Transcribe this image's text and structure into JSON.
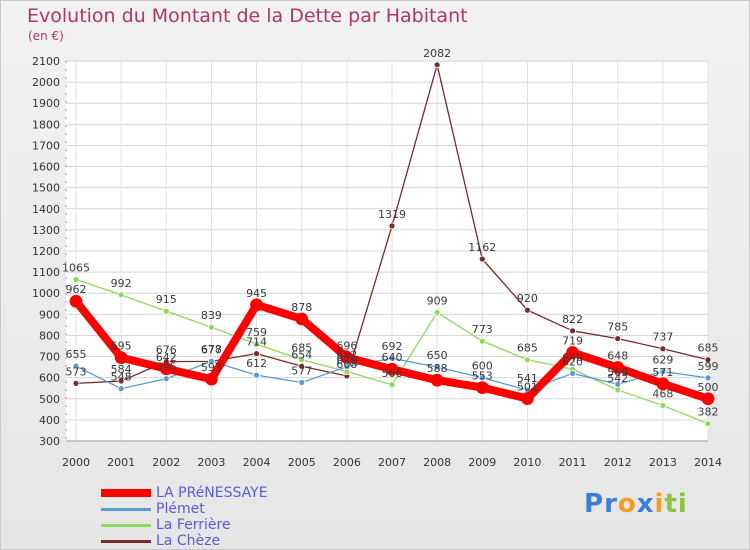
{
  "chart_data": {
    "type": "line",
    "title": "Evolution du Montant de la Dette par Habitant",
    "subtitle": "(en €)",
    "xlabel": "",
    "ylabel": "",
    "ylim": [
      300,
      2100
    ],
    "yticks": [
      300,
      400,
      500,
      600,
      700,
      800,
      900,
      1000,
      1100,
      1200,
      1300,
      1400,
      1500,
      1600,
      1700,
      1800,
      1900,
      2000,
      2100
    ],
    "categories": [
      "2000",
      "2001",
      "2002",
      "2003",
      "2004",
      "2005",
      "2006",
      "2007",
      "2008",
      "2009",
      "2010",
      "2011",
      "2012",
      "2013",
      "2014"
    ],
    "grid": true,
    "legend_position": "bottom-left",
    "series": [
      {
        "name": "LA PRéNESSAYE",
        "color": "#ff0000",
        "values": [
          962,
          695,
          642,
          593,
          945,
          878,
          696,
          640,
          588,
          553,
          501,
          719,
          648,
          571,
          500
        ]
      },
      {
        "name": "Plémet",
        "color": "#5a9bd5",
        "values": [
          655,
          548,
          595,
          678,
          612,
          577,
          652,
          692,
          650,
          600,
          541,
          620,
          569,
          629,
          599
        ]
      },
      {
        "name": "La Ferrière",
        "color": "#8fd95a",
        "values": [
          1065,
          992,
          915,
          839,
          759,
          685,
          629,
          566,
          909,
          773,
          685,
          640,
          542,
          468,
          382
        ]
      },
      {
        "name": "La Chèze",
        "color": "#7a2a2a",
        "values": [
          573,
          584,
          676,
          677,
          714,
          654,
          608,
          1319,
          2082,
          1162,
          920,
          822,
          785,
          737,
          685
        ]
      }
    ]
  },
  "branding": {
    "logo_letters": [
      "P",
      "r",
      "o",
      "x",
      "i",
      "t",
      "i"
    ],
    "logo_colors": [
      "#3b7fd4",
      "#3b7fd4",
      "#f0a020",
      "#3b7fd4",
      "#f0a020",
      "#8ac53e",
      "#8ac53e"
    ]
  }
}
